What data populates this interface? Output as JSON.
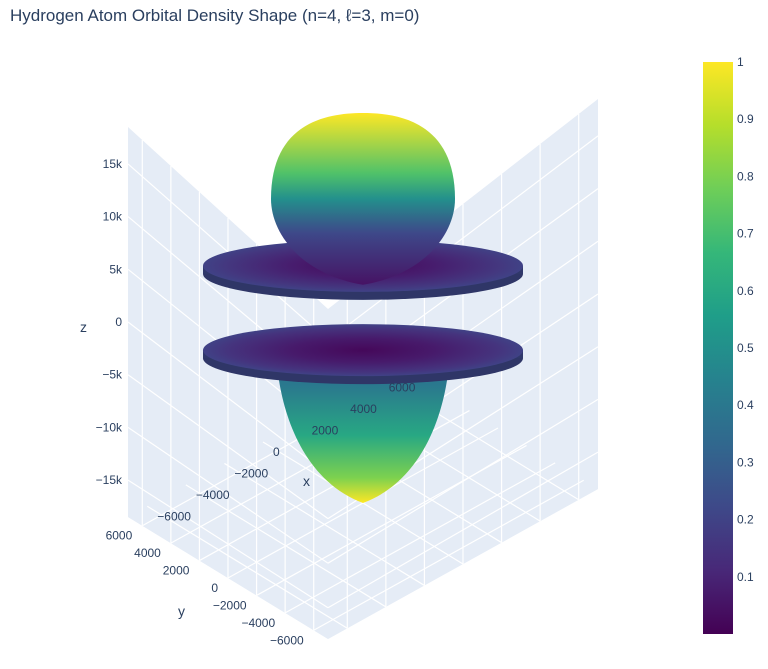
{
  "title": "Hydrogen Atom Orbital Density Shape (n=4, ℓ=3, m=0)",
  "chart_data": {
    "type": "surface",
    "subtype": "3d-isosurface",
    "orbital": {
      "n": 4,
      "l": 3,
      "m": 0
    },
    "colorscale": "Viridis",
    "colorscale_stops": [
      "#440154",
      "#482878",
      "#3e4989",
      "#31688e",
      "#26828e",
      "#1f9e89",
      "#35b779",
      "#6ece58",
      "#b5de2b",
      "#fde725"
    ],
    "color_range": [
      0,
      1
    ],
    "colorbar_ticks": [
      "1",
      "0.9",
      "0.8",
      "0.7",
      "0.6",
      "0.5",
      "0.4",
      "0.3",
      "0.2",
      "0.1"
    ],
    "axes": {
      "x": {
        "label": "x",
        "ticks": [
          "−6000",
          "−4000",
          "−2000",
          "0",
          "2000",
          "4000",
          "6000"
        ],
        "range": [
          -7000,
          7000
        ]
      },
      "y": {
        "label": "y",
        "ticks": [
          "−6000",
          "−4000",
          "−2000",
          "0",
          "2000",
          "4000",
          "6000"
        ],
        "range": [
          -7000,
          7000
        ]
      },
      "z": {
        "label": "z",
        "ticks": [
          "15k",
          "10k",
          "5k",
          "0",
          "−5k",
          "−10k",
          "−15k"
        ],
        "range": [
          -18500,
          18500
        ]
      }
    },
    "scene_background": "#e5ecf6",
    "grid": true,
    "lobes": [
      {
        "name": "upper-polar-lobe",
        "z_range": [
          2000,
          18500
        ],
        "color_top": 1.0,
        "color_bottom": 0.1
      },
      {
        "name": "upper-ring",
        "z_center": 4000,
        "radius": 11500,
        "color": 0.15
      },
      {
        "name": "lower-ring",
        "z_center": -4000,
        "radius": 11500,
        "color": 0.15
      },
      {
        "name": "lower-polar-lobe",
        "z_range": [
          -18500,
          -2000
        ],
        "color_top": 0.35,
        "color_bottom": 1.0
      }
    ]
  }
}
